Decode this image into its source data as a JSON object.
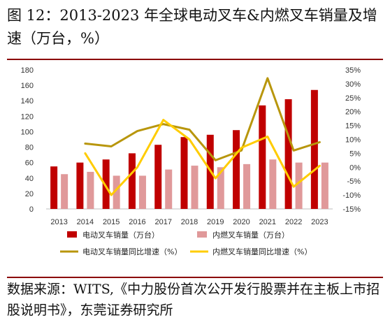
{
  "title": "图 12：2013-2023 年全球电动叉车&内燃叉车销量及增速（万台，%）",
  "source": "数据来源：WITS,《中力股份首次公开发行股票并在主板上市招股说明书》，东莞证券研究所",
  "colors": {
    "ev_bar": "#c00000",
    "ice_bar": "#e0999a",
    "ev_growth": "#b8960c",
    "ice_growth": "#ffcc00",
    "rule": "#8b0000"
  },
  "chart_data": {
    "type": "bar",
    "categories": [
      "2013",
      "2014",
      "2015",
      "2016",
      "2017",
      "2018",
      "2019",
      "2020",
      "2021",
      "2022",
      "2023"
    ],
    "series": [
      {
        "name": "电动叉车销量（万台）",
        "type": "bar",
        "axis": "left",
        "values": [
          55,
          60,
          64,
          72,
          83,
          93,
          96,
          102,
          134,
          142,
          154
        ]
      },
      {
        "name": "内燃叉车销量（万台）",
        "type": "bar",
        "axis": "left",
        "values": [
          45,
          48,
          43,
          43,
          51,
          56,
          54,
          58,
          64,
          60,
          60
        ]
      },
      {
        "name": "电动叉车销量同比增速（%）",
        "type": "line",
        "axis": "right",
        "values": [
          null,
          8.5,
          7.5,
          13,
          15.5,
          13.5,
          2.5,
          6,
          32,
          6,
          9
        ]
      },
      {
        "name": "内燃叉车销量同比增速（%）",
        "type": "line",
        "axis": "right",
        "values": [
          null,
          5,
          -10,
          0,
          17,
          10,
          -4,
          7,
          11,
          -7,
          0.5
        ]
      }
    ],
    "y_left": {
      "min": 0,
      "max": 180,
      "ticks": [
        "0",
        "20",
        "40",
        "60",
        "80",
        "100",
        "120",
        "140",
        "160",
        "180"
      ]
    },
    "y_right": {
      "min": -15,
      "max": 35,
      "ticks": [
        "-15%",
        "-10%",
        "-5%",
        "0%",
        "5%",
        "10%",
        "15%",
        "20%",
        "25%",
        "30%",
        "35%"
      ]
    },
    "grid": false,
    "legend_position": "bottom"
  }
}
